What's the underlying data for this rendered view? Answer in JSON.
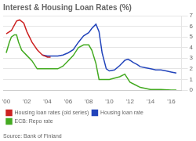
{
  "chart_data": {
    "type": "line",
    "title": "Interest & Housing Loan Rates (%)",
    "annotations": [
      "Source: Bank of Finland"
    ],
    "series": [
      {
        "name": "Housing loan rates (old series)",
        "color": "#cc2222",
        "x": [
          2000.0,
          2000.5,
          2001.0,
          2001.3,
          2001.7,
          2002.0,
          2002.5,
          2003.0,
          2003.5,
          2004.0,
          2004.3
        ],
        "values": [
          5.3,
          5.6,
          6.5,
          6.6,
          6.3,
          5.5,
          4.5,
          3.8,
          3.3,
          3.1,
          3.1
        ]
      },
      {
        "name": "Housing loan rate",
        "color": "#2244bb",
        "x": [
          2003.5,
          2004.0,
          2004.5,
          2005.0,
          2005.5,
          2006.0,
          2006.5,
          2007.0,
          2007.5,
          2008.0,
          2008.3,
          2008.7,
          2009.0,
          2009.3,
          2009.7,
          2010.0,
          2010.5,
          2011.0,
          2011.3,
          2011.5,
          2011.8,
          2012.0,
          2012.3,
          2012.7,
          2013.0,
          2013.5,
          2014.0,
          2014.5,
          2015.0,
          2015.5,
          2016.0,
          2016.5
        ],
        "values": [
          3.3,
          3.2,
          3.2,
          3.2,
          3.3,
          3.5,
          3.8,
          4.5,
          5.1,
          5.4,
          5.8,
          6.2,
          5.5,
          3.5,
          2.0,
          1.8,
          1.9,
          2.3,
          2.6,
          2.8,
          2.9,
          2.8,
          2.6,
          2.4,
          2.2,
          2.1,
          2.0,
          1.9,
          1.9,
          1.8,
          1.7,
          1.6
        ]
      },
      {
        "name": "ECB: Repo rate",
        "color": "#44aa22",
        "x": [
          2000.0,
          2000.3,
          2000.5,
          2000.8,
          2001.0,
          2001.2,
          2001.5,
          2002.0,
          2002.5,
          2003.0,
          2003.3,
          2004.0,
          2004.5,
          2005.0,
          2005.5,
          2006.0,
          2006.5,
          2007.0,
          2007.5,
          2008.0,
          2008.3,
          2008.7,
          2009.0,
          2009.2,
          2009.5,
          2010.0,
          2011.0,
          2011.5,
          2012.0,
          2012.5,
          2013.0,
          2014.0,
          2015.0,
          2016.0,
          2016.5
        ],
        "values": [
          3.5,
          4.5,
          5.0,
          5.2,
          5.2,
          4.5,
          3.75,
          3.25,
          2.75,
          2.0,
          2.0,
          2.0,
          2.0,
          2.0,
          2.25,
          2.75,
          3.25,
          4.0,
          4.25,
          4.25,
          3.75,
          2.5,
          1.0,
          1.0,
          1.0,
          1.0,
          1.25,
          1.5,
          0.75,
          0.5,
          0.25,
          0.05,
          0.05,
          0.0,
          0.0
        ]
      }
    ],
    "xlim": [
      1999.7,
      2017.0
    ],
    "xticks": [
      {
        "value": 2000,
        "label": "'00"
      },
      {
        "value": 2002,
        "label": "'02"
      },
      {
        "value": 2004,
        "label": "'04"
      },
      {
        "value": 2006,
        "label": "'06"
      },
      {
        "value": 2008,
        "label": "'08"
      },
      {
        "value": 2010,
        "label": "'10"
      },
      {
        "value": 2012,
        "label": "'12"
      },
      {
        "value": 2014,
        "label": "'14"
      },
      {
        "value": 2016,
        "label": "'16"
      }
    ],
    "ylim": [
      0,
      7
    ],
    "yticks": [
      0,
      1,
      2,
      3,
      4,
      5,
      6,
      7
    ],
    "grid": "y",
    "legend": "lower left"
  }
}
